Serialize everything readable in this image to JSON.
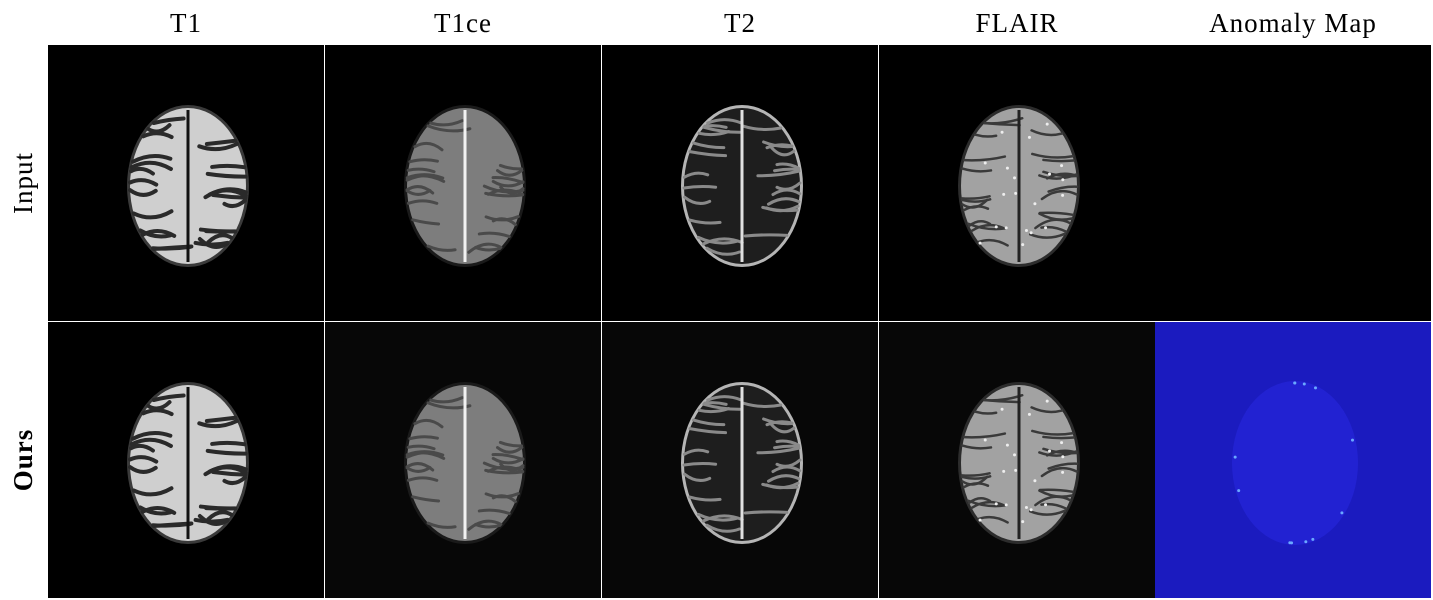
{
  "columns": [
    "T1",
    "T1ce",
    "T2",
    "FLAIR",
    "Anomaly Map"
  ],
  "rows": [
    "Input",
    "Ours"
  ]
}
